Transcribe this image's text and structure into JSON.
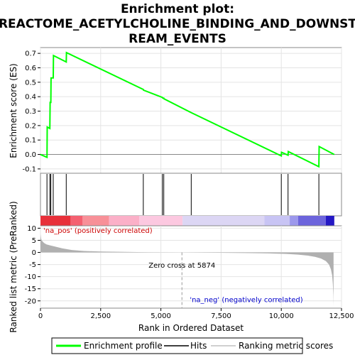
{
  "chart_data": {
    "type": "line",
    "title_line1": "Enrichment plot:",
    "title_line2": "REACTOME_ACETYLCHOLINE_BINDING_AND_DOWNST",
    "title_line3": "REAM_EVENTS",
    "top_panel": {
      "ylabel": "Enrichment score (ES)",
      "ylim": [
        -0.13,
        0.74
      ],
      "yticks": [
        "0.7",
        "0.6",
        "0.5",
        "0.4",
        "0.3",
        "0.2",
        "0.1",
        "0.0",
        "-0.1"
      ],
      "ytick_values": [
        0.7,
        0.6,
        0.5,
        0.4,
        0.3,
        0.2,
        0.1,
        0.0,
        -0.1
      ],
      "series": [
        {
          "name": "Enrichment profile",
          "color": "#00ff00",
          "x": [
            0,
            270,
            280,
            390,
            400,
            430,
            440,
            530,
            540,
            1070,
            1080,
            4270,
            4280,
            5060,
            5080,
            5120,
            5130,
            6260,
            10000,
            10010,
            10280,
            10290,
            11560,
            11570,
            12200
          ],
          "y": [
            0.0,
            -0.02,
            0.19,
            0.18,
            0.36,
            0.36,
            0.53,
            0.53,
            0.685,
            0.64,
            0.705,
            0.45,
            0.445,
            0.395,
            0.39,
            0.39,
            0.385,
            0.29,
            -0.01,
            0.015,
            -0.005,
            0.02,
            -0.085,
            0.055,
            0.0
          ]
        }
      ]
    },
    "hits": {
      "name": "Hits",
      "x": [
        270,
        390,
        430,
        530,
        1070,
        4270,
        5060,
        5120,
        6260,
        10000,
        10280,
        11560
      ]
    },
    "colorbar_segments": [
      {
        "from": 0,
        "to": 1250,
        "color": "#e8303a"
      },
      {
        "from": 1250,
        "to": 1750,
        "color": "#f46070"
      },
      {
        "from": 1750,
        "to": 2850,
        "color": "#f89098"
      },
      {
        "from": 2850,
        "to": 4100,
        "color": "#fbb0c8"
      },
      {
        "from": 4100,
        "to": 5900,
        "color": "#fcc8e0"
      },
      {
        "from": 5900,
        "to": 9300,
        "color": "#dcd6f4"
      },
      {
        "from": 9300,
        "to": 10350,
        "color": "#c8c4f4"
      },
      {
        "from": 10350,
        "to": 10700,
        "color": "#9c98ec"
      },
      {
        "from": 10700,
        "to": 11850,
        "color": "#6c64dc"
      },
      {
        "from": 11850,
        "to": 12200,
        "color": "#2418c4"
      }
    ],
    "bottom_panel": {
      "ylabel": "Ranked list metric (PreRanked)",
      "xlabel": "Rank in Ordered Dataset",
      "ylim": [
        -23,
        11
      ],
      "yticks": [
        "10",
        "5",
        "0",
        "-5",
        "-10",
        "-15",
        "-20"
      ],
      "ytick_values": [
        10,
        5,
        0,
        -5,
        -10,
        -15,
        -20
      ],
      "series": [
        {
          "name": "Ranking metric scores",
          "color": "#b0b0b0",
          "x": [
            0,
            30,
            80,
            150,
            250,
            400,
            600,
            900,
            1300,
            1800,
            2500,
            3500,
            4500,
            5874,
            7000,
            8500,
            9500,
            10200,
            10700,
            11100,
            11400,
            11650,
            11850,
            11980,
            12060,
            12110,
            12140,
            12160,
            12170
          ],
          "y": [
            7.5,
            5.5,
            4.6,
            3.9,
            3.3,
            2.9,
            2.4,
            1.7,
            1.0,
            0.6,
            0.35,
            0.2,
            0.1,
            0.0,
            -0.1,
            -0.25,
            -0.4,
            -0.6,
            -0.9,
            -1.3,
            -1.8,
            -2.5,
            -3.6,
            -5.0,
            -7.0,
            -9.5,
            -13.0,
            -17.5,
            -22.0
          ]
        }
      ],
      "pos_label": "'na_pos' (positively correlated)",
      "neg_label": "'na_neg' (negatively correlated)",
      "zero_cross_label": "Zero cross at 5874",
      "zero_cross_x": 5874
    },
    "xlim": [
      0,
      12500
    ],
    "xticks": [
      "0",
      "2,500",
      "5,000",
      "7,500",
      "10,000",
      "12,500"
    ],
    "xtick_values": [
      0,
      2500,
      5000,
      7500,
      10000,
      12500
    ],
    "grid": true,
    "legend": {
      "placement": "bottom",
      "items": [
        "Enrichment profile",
        "Hits",
        "Ranking metric scores"
      ]
    },
    "colors": {
      "profile": "#00ff00",
      "hits": "#000000",
      "metric": "#b0b0b0",
      "pos_label": "#cc0000",
      "neg_label": "#0000cc",
      "zero_cross": "#000000"
    }
  }
}
